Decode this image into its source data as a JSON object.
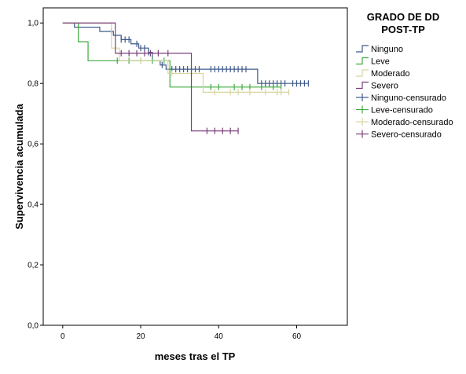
{
  "chart_data": {
    "type": "line",
    "subtype": "kaplan-meier step",
    "xlabel": "meses tras el TP",
    "ylabel": "Supervivencia acumulada",
    "xlim": [
      -5,
      73
    ],
    "ylim": [
      0,
      1.05
    ],
    "xticks": [
      0,
      20,
      40,
      60
    ],
    "yticks": [
      "0,0",
      "0,2",
      "0,4",
      "0,6",
      "0,8",
      "1,0"
    ],
    "grid": false,
    "legend": {
      "title_lines": [
        "GRADO DE DD",
        "POST-TP"
      ],
      "placement": "right",
      "entries": [
        "Ninguno",
        "Leve",
        "Moderado",
        "Severo",
        "Ninguno-censurado",
        "Leve-censurado",
        "Moderado-censurado",
        "Severo-censurado"
      ]
    },
    "series": [
      {
        "name": "Ninguno",
        "color": "#3f5a8a",
        "steps": [
          [
            0,
            1.0
          ],
          [
            3,
            0.986
          ],
          [
            9.5,
            0.972
          ],
          [
            13,
            0.959
          ],
          [
            15,
            0.945
          ],
          [
            17.5,
            0.931
          ],
          [
            19.5,
            0.917
          ],
          [
            22,
            0.903
          ],
          [
            23,
            0.875
          ],
          [
            25,
            0.861
          ],
          [
            26.5,
            0.847
          ],
          [
            50,
            0.8
          ],
          [
            63,
            0.8
          ]
        ],
        "censored_x": [
          12.5,
          15,
          16,
          17,
          19,
          20,
          21,
          22,
          25.5,
          28,
          29,
          30,
          31,
          32,
          33,
          34,
          35,
          38,
          39,
          40,
          41,
          42,
          43,
          44,
          45,
          46,
          47,
          51,
          52,
          53,
          54,
          55,
          56,
          57,
          59,
          60,
          61,
          62,
          63
        ]
      },
      {
        "name": "Leve",
        "color": "#3faa3f",
        "steps": [
          [
            0,
            1.0
          ],
          [
            4,
            0.938
          ],
          [
            6.5,
            0.875
          ],
          [
            27.5,
            0.788
          ],
          [
            56,
            0.788
          ]
        ],
        "censored_x": [
          14,
          17,
          20,
          23,
          26,
          38,
          40,
          44,
          46,
          48,
          51,
          54,
          56
        ]
      },
      {
        "name": "Moderado",
        "color": "#d8d4a0",
        "steps": [
          [
            0,
            1.0
          ],
          [
            12.5,
            0.917
          ],
          [
            14.5,
            0.875
          ],
          [
            27,
            0.833
          ],
          [
            36,
            0.771
          ],
          [
            58,
            0.771
          ]
        ],
        "censored_x": [
          20,
          28,
          33,
          39,
          43,
          45,
          48,
          52,
          55,
          56,
          58
        ]
      },
      {
        "name": "Severo",
        "color": "#7a3f7a",
        "steps": [
          [
            0,
            1.0
          ],
          [
            13.5,
            0.9
          ],
          [
            32,
            0.9
          ],
          [
            33,
            0.643
          ],
          [
            45,
            0.643
          ]
        ],
        "censored_x": [
          15,
          17,
          19,
          21,
          22.5,
          24.5,
          27,
          37,
          39,
          41,
          43,
          45
        ]
      }
    ]
  }
}
